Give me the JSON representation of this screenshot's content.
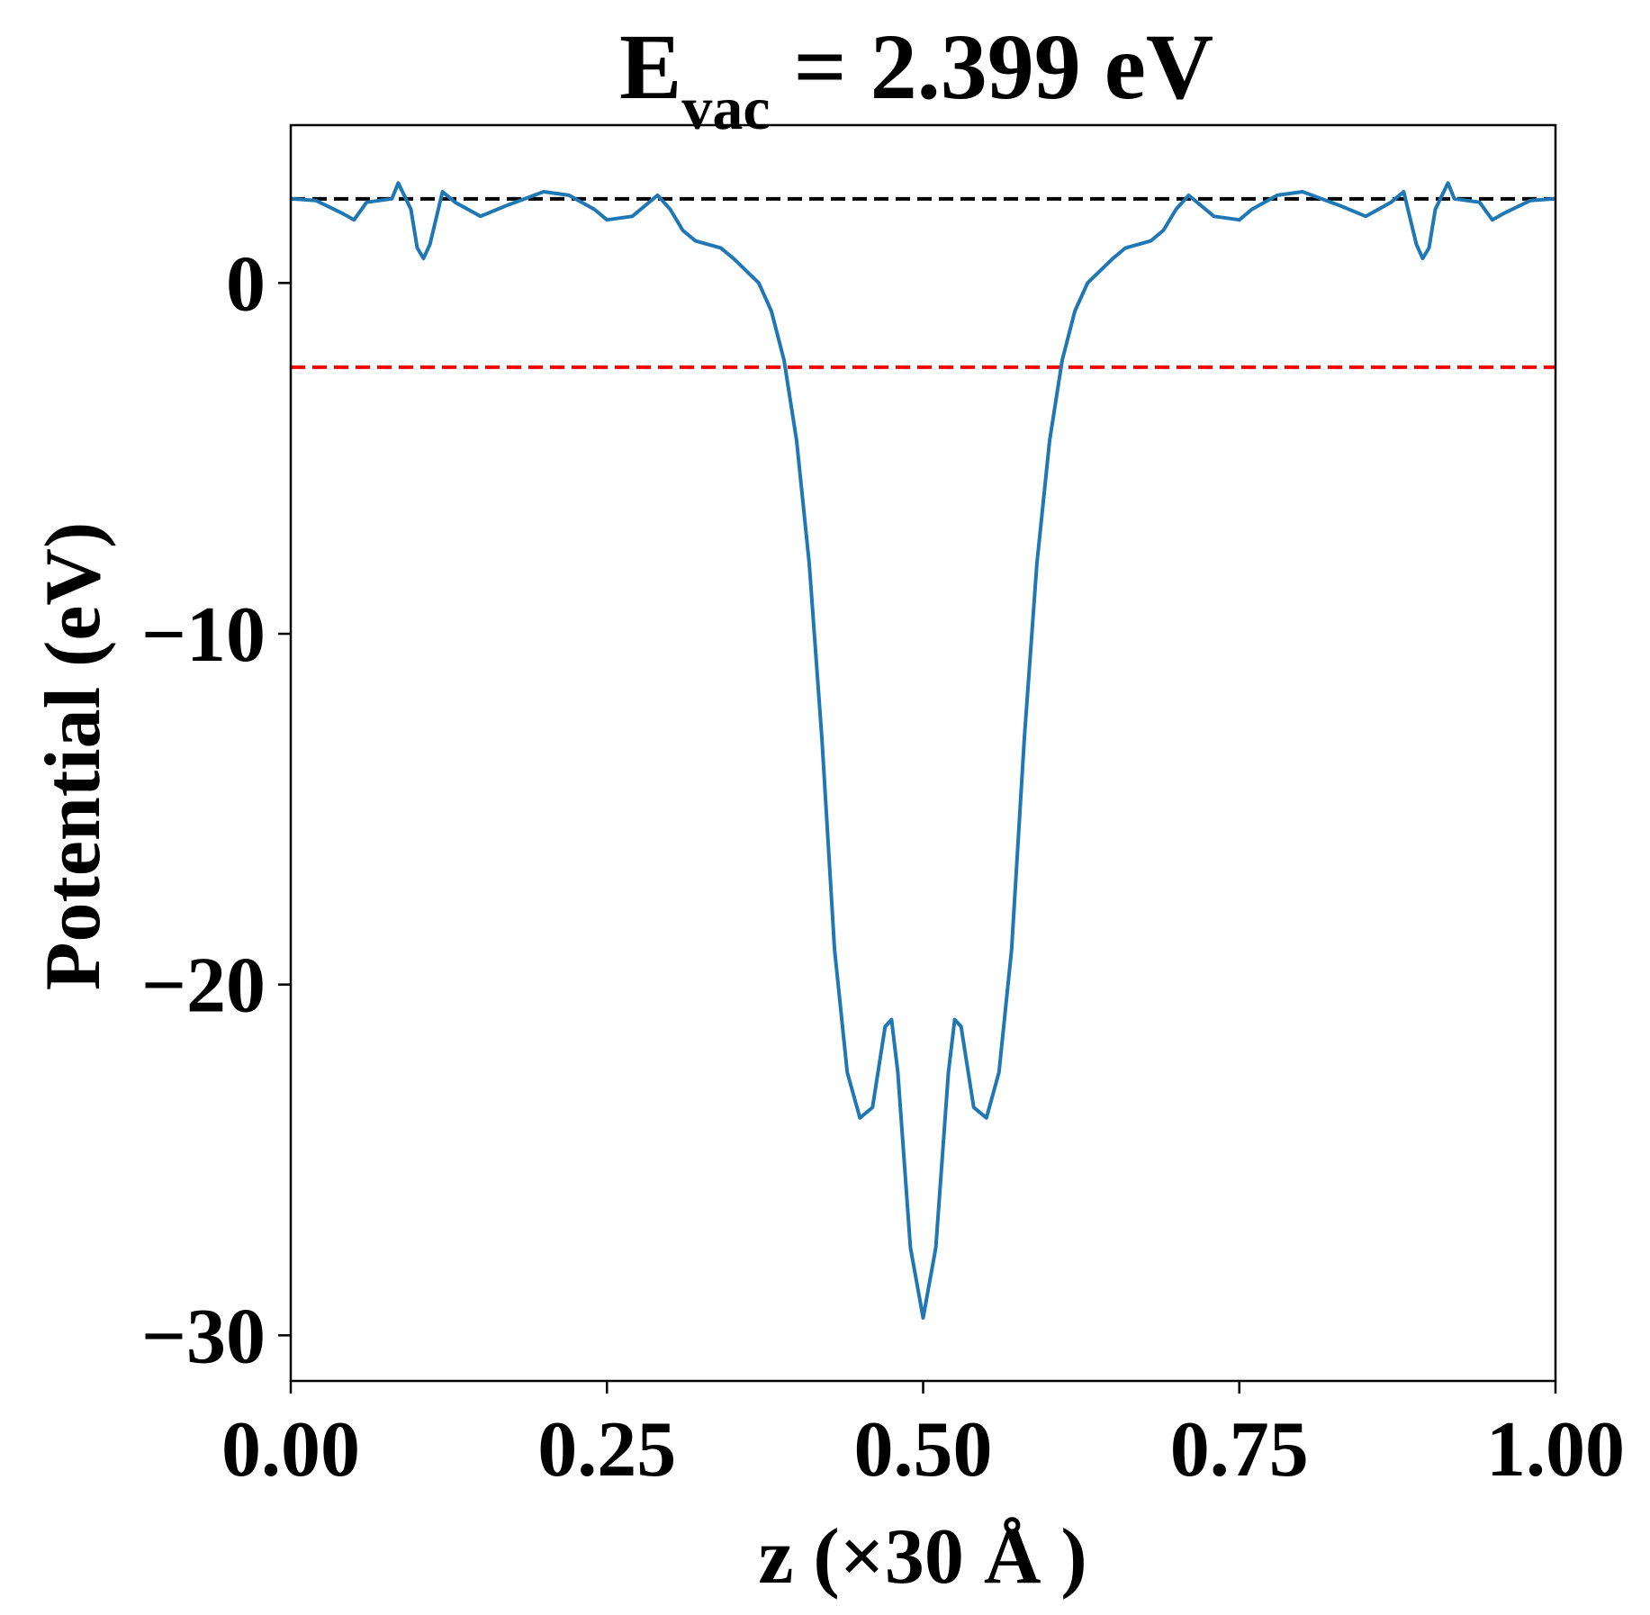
{
  "chart_data": {
    "type": "line",
    "title": {
      "main": "E",
      "subscript": "vac",
      "rest": " = 2.399 eV"
    },
    "xlabel": "z (×30 Å )",
    "ylabel": "Potential (eV)",
    "xlim": [
      0,
      1
    ],
    "ylim": [
      -31.3,
      4.5
    ],
    "x_ticks": [
      0.0,
      0.25,
      0.5,
      0.75,
      1.0
    ],
    "x_tick_labels": [
      "0.00",
      "0.25",
      "0.50",
      "0.75",
      "1.00"
    ],
    "y_ticks": [
      0,
      -10,
      -20,
      -30
    ],
    "y_tick_labels": [
      "0",
      "−10",
      "−20",
      "−30"
    ],
    "grid": false,
    "legend": null,
    "series": [
      {
        "color": "#1f77b4",
        "x": [
          0.0,
          0.02,
          0.04,
          0.05,
          0.06,
          0.08,
          0.085,
          0.095,
          0.1,
          0.105,
          0.11,
          0.12,
          0.13,
          0.15,
          0.17,
          0.2,
          0.22,
          0.24,
          0.25,
          0.27,
          0.29,
          0.3,
          0.31,
          0.32,
          0.34,
          0.35,
          0.37,
          0.38,
          0.39,
          0.4,
          0.41,
          0.42,
          0.43,
          0.44,
          0.45,
          0.46,
          0.47,
          0.475,
          0.48,
          0.49,
          0.5,
          0.51,
          0.52,
          0.525,
          0.53,
          0.54,
          0.55,
          0.56,
          0.57,
          0.58,
          0.59,
          0.6,
          0.61,
          0.62,
          0.63,
          0.65,
          0.66,
          0.68,
          0.69,
          0.7,
          0.71,
          0.73,
          0.75,
          0.76,
          0.78,
          0.8,
          0.83,
          0.85,
          0.87,
          0.88,
          0.89,
          0.895,
          0.9,
          0.905,
          0.915,
          0.92,
          0.94,
          0.95,
          0.96,
          0.98,
          1.0
        ],
        "y": [
          2.4,
          2.35,
          2.0,
          1.8,
          2.3,
          2.4,
          2.85,
          2.1,
          1.0,
          0.7,
          1.1,
          2.6,
          2.3,
          1.9,
          2.2,
          2.6,
          2.5,
          2.1,
          1.8,
          1.9,
          2.5,
          2.1,
          1.5,
          1.2,
          1.0,
          0.7,
          0.0,
          -0.8,
          -2.2,
          -4.5,
          -8.0,
          -13.0,
          -19.0,
          -22.5,
          -23.8,
          -23.5,
          -21.2,
          -21.0,
          -22.5,
          -27.5,
          -29.5,
          -27.5,
          -22.5,
          -21.0,
          -21.2,
          -23.5,
          -23.8,
          -22.5,
          -19.0,
          -13.0,
          -8.0,
          -4.5,
          -2.2,
          -0.8,
          0.0,
          0.7,
          1.0,
          1.2,
          1.5,
          2.1,
          2.5,
          1.9,
          1.8,
          2.1,
          2.5,
          2.6,
          2.2,
          1.9,
          2.3,
          2.6,
          1.1,
          0.7,
          1.0,
          2.1,
          2.85,
          2.4,
          2.3,
          1.8,
          2.0,
          2.35,
          2.4
        ]
      }
    ],
    "reference_lines": [
      {
        "y": 2.399,
        "color": "#000000",
        "style": "dashed"
      },
      {
        "y": -2.4,
        "color": "#ff0000",
        "style": "dashed"
      }
    ]
  }
}
